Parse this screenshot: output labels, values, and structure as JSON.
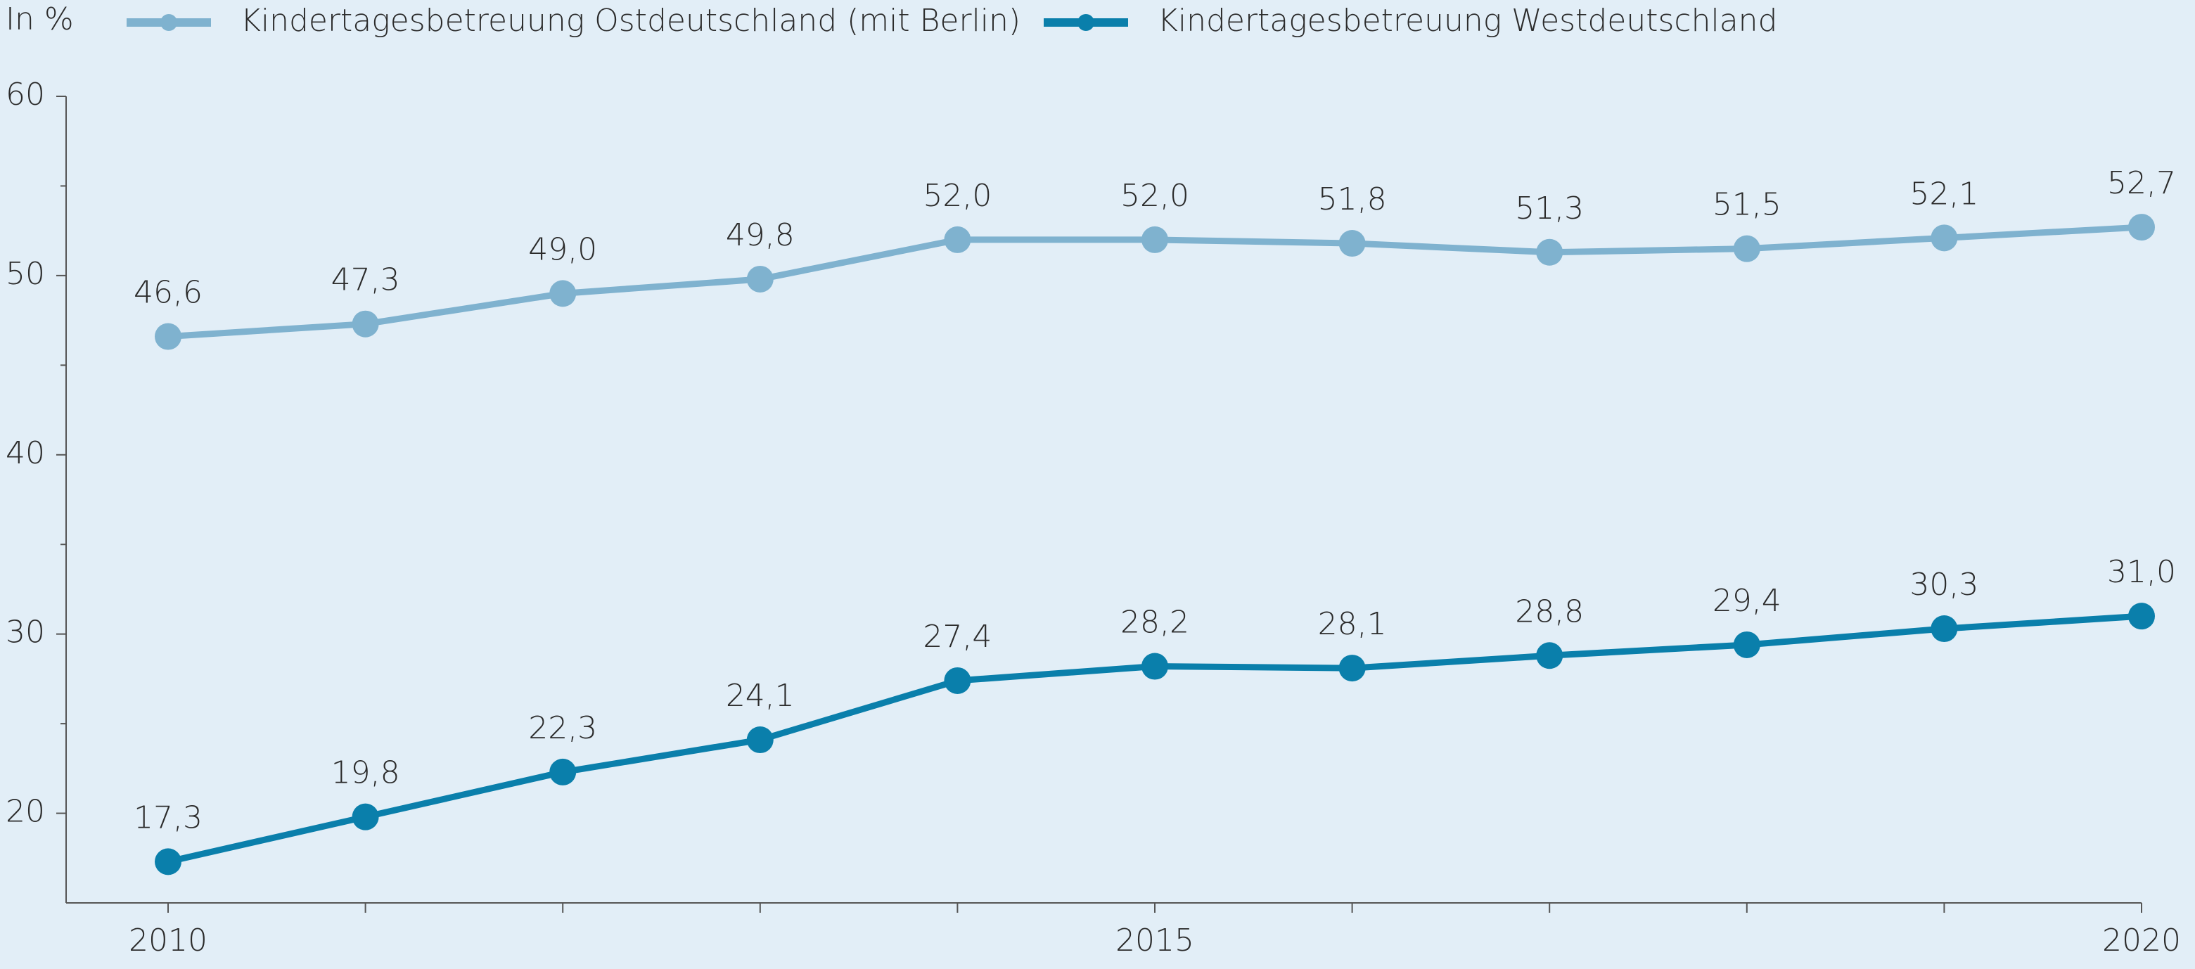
{
  "chart_data": {
    "type": "line",
    "y_label": "In %",
    "x": [
      2010,
      2011,
      2012,
      2013,
      2014,
      2015,
      2016,
      2017,
      2018,
      2019,
      2020
    ],
    "series": [
      {
        "name": "Kindertagesbetreuung Ostdeutschland (mit Berlin)",
        "color": "#7fb2cf",
        "values": [
          46.6,
          47.3,
          49.0,
          49.8,
          52.0,
          52.0,
          51.8,
          51.3,
          51.5,
          52.1,
          52.7
        ],
        "value_labels": [
          "46,6",
          "47,3",
          "49,0",
          "49,8",
          "52,0",
          "52,0",
          "51,8",
          "51,3",
          "51,5",
          "52,1",
          "52,7"
        ]
      },
      {
        "name": "Kindertagesbetreuung Westdeutschland",
        "color": "#0a7fab",
        "values": [
          17.3,
          19.8,
          22.3,
          24.1,
          27.4,
          28.2,
          28.1,
          28.8,
          29.4,
          30.3,
          31.0
        ],
        "value_labels": [
          "17,3",
          "19,8",
          "22,3",
          "24,1",
          "27,4",
          "28,2",
          "28,1",
          "28,8",
          "29,4",
          "30,3",
          "31,0"
        ]
      }
    ],
    "xlim": [
      2010,
      2020
    ],
    "xticks": [
      2010,
      2015,
      2020
    ],
    "ylim": [
      15,
      60
    ],
    "yticks": [
      20,
      30,
      40,
      50,
      60
    ],
    "legend": "top",
    "grid": false
  }
}
